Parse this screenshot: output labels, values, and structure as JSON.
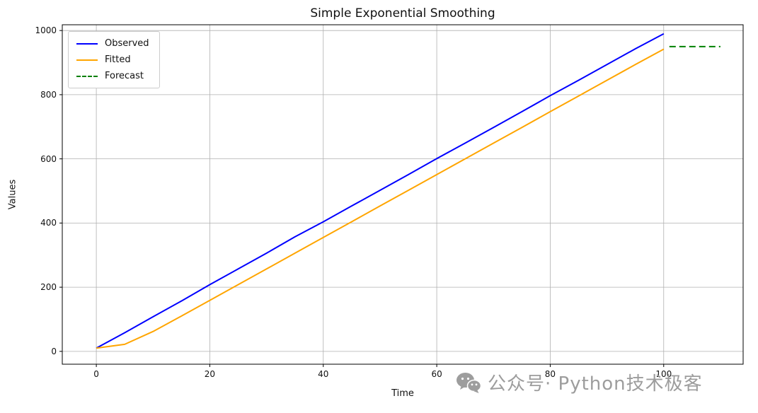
{
  "watermark": {
    "text": "公众号· Python技术极客",
    "icon": "wechat-icon",
    "color": "#9d9d9d"
  },
  "chart_data": {
    "type": "line",
    "title": "Simple Exponential Smoothing",
    "xlabel": "Time",
    "ylabel": "Values",
    "xlim": [
      -6,
      114
    ],
    "ylim": [
      -40,
      1018
    ],
    "xticks": [
      0,
      20,
      40,
      60,
      80,
      100
    ],
    "yticks": [
      0,
      200,
      400,
      600,
      800,
      1000
    ],
    "grid": true,
    "grid_color": "#b0b0b0",
    "legend_position": "upper left",
    "series": [
      {
        "name": "Observed",
        "color": "#0000ff",
        "style": "solid",
        "x": [
          0,
          5,
          10,
          15,
          20,
          25,
          30,
          35,
          40,
          45,
          50,
          55,
          60,
          65,
          70,
          75,
          80,
          85,
          90,
          95,
          100
        ],
        "values": [
          10,
          58,
          108,
          157,
          208,
          257,
          306,
          357,
          404,
          453,
          502,
          551,
          601,
          649,
          698,
          747,
          797,
          845,
          894,
          943,
          990
        ]
      },
      {
        "name": "Fitted",
        "color": "#ffa500",
        "style": "solid",
        "x": [
          0,
          5,
          10,
          15,
          20,
          25,
          30,
          35,
          40,
          45,
          50,
          55,
          60,
          65,
          70,
          75,
          80,
          85,
          90,
          95,
          100
        ],
        "values": [
          10,
          22,
          62,
          110,
          159,
          208,
          257,
          306,
          355,
          404,
          453,
          502,
          551,
          600,
          649,
          698,
          747,
          796,
          845,
          894,
          942
        ]
      },
      {
        "name": "Forecast",
        "color": "#008000",
        "style": "dashed",
        "x": [
          101,
          110
        ],
        "values": [
          950,
          950
        ]
      }
    ]
  }
}
